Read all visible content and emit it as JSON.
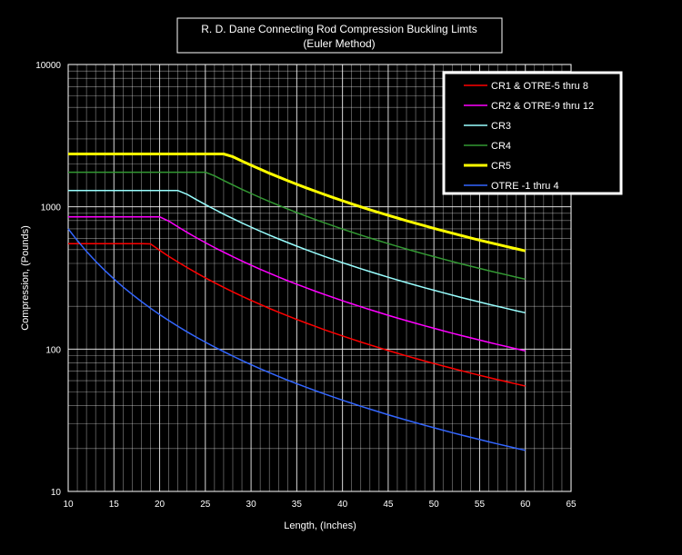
{
  "chart_data": {
    "type": "line",
    "title": "R. D. Dane Connecting Rod Compression Buckling Limts",
    "subtitle": "(Euler Method)",
    "xlabel": "Length, (Inches)",
    "ylabel": "Compression, (Pounds)",
    "xlim": [
      10,
      65
    ],
    "ylim": [
      10,
      10000
    ],
    "yscale": "log",
    "grid": true,
    "legend_position": "top-right",
    "x_ticks": [
      "10",
      "15",
      "20",
      "25",
      "30",
      "35",
      "40",
      "45",
      "50",
      "55",
      "60",
      "65"
    ],
    "y_ticks": [
      "10",
      "100",
      "1000",
      "10000"
    ],
    "series": [
      {
        "name": "CR1 & OTRE-5 thru 8",
        "color": "#ff0000",
        "cap": 550,
        "k": 198000,
        "width": 1.5
      },
      {
        "name": "CR2 & OTRE-9 thru 12",
        "color": "#ff00ff",
        "cap": 850,
        "k": 350000,
        "width": 1.5
      },
      {
        "name": "CR3",
        "color": "#99ffff",
        "cap": 1300,
        "k": 648000,
        "width": 1.5
      },
      {
        "name": "CR4",
        "color": "#339933",
        "cap": 1750,
        "k": 1116000,
        "width": 1.5
      },
      {
        "name": "CR5",
        "color": "#ffff00",
        "cap": 2350,
        "k": 1764000,
        "width": 3
      },
      {
        "name": "OTRE -1 thru 4",
        "color": "#3366ff",
        "cap": 700,
        "k": 70000,
        "width": 1.5
      }
    ]
  }
}
